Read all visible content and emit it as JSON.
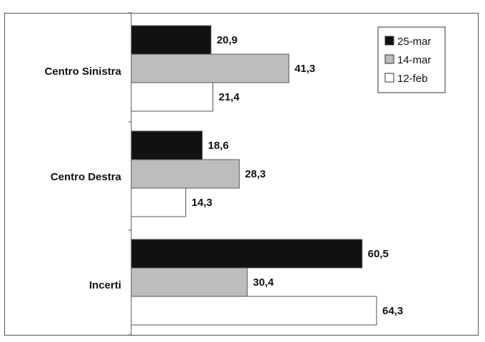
{
  "chart_data": {
    "type": "bar",
    "orientation": "horizontal",
    "categories": [
      "Centro Sinistra",
      "Centro Destra",
      "Incerti"
    ],
    "series": [
      {
        "name": "25-mar",
        "values": [
          20.9,
          18.6,
          60.5
        ],
        "labels": [
          "20,9",
          "18,6",
          "60,5"
        ],
        "color": "#111111"
      },
      {
        "name": "14-mar",
        "values": [
          41.3,
          28.3,
          30.4
        ],
        "labels": [
          "41,3",
          "28,3",
          "30,4"
        ],
        "color": "#bdbdbd"
      },
      {
        "name": "12-feb",
        "values": [
          21.4,
          14.3,
          64.3
        ],
        "labels": [
          "21,4",
          "14,3",
          "64,3"
        ],
        "color": "#ffffff"
      }
    ],
    "title": "",
    "xlabel": "",
    "ylabel": "",
    "xlim": [
      0,
      100
    ],
    "grid": false,
    "legend_position": "top-right"
  }
}
